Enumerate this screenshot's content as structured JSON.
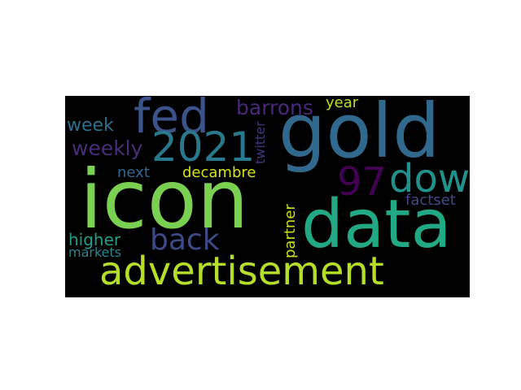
{
  "canvas_background": "#000000",
  "page_background": "#ffffff",
  "words": [
    {
      "text": "gold",
      "color": "#31688e"
    },
    {
      "text": "icon",
      "color": "#7ad151"
    },
    {
      "text": "data",
      "color": "#22a884"
    },
    {
      "text": "advertisement",
      "color": "#b5de2b"
    },
    {
      "text": "fed",
      "color": "#3b528b"
    },
    {
      "text": "2021",
      "color": "#2a788e"
    },
    {
      "text": "dow",
      "color": "#21918c"
    },
    {
      "text": "97",
      "color": "#440154"
    },
    {
      "text": "back",
      "color": "#3e4989"
    },
    {
      "text": "barrons",
      "color": "#482878"
    },
    {
      "text": "weekly",
      "color": "#472d7b"
    },
    {
      "text": "week",
      "color": "#2c728e"
    },
    {
      "text": "year",
      "color": "#bddf26"
    },
    {
      "text": "next",
      "color": "#31688e"
    },
    {
      "text": "decambre",
      "color": "#d8e219"
    },
    {
      "text": "factset",
      "color": "#3e4a89"
    },
    {
      "text": "higher",
      "color": "#1f9e89"
    },
    {
      "text": "twitter",
      "color": "#46337e"
    },
    {
      "text": "partner",
      "color": "#c8e020"
    },
    {
      "text": "markets",
      "color": "#25858e"
    }
  ]
}
